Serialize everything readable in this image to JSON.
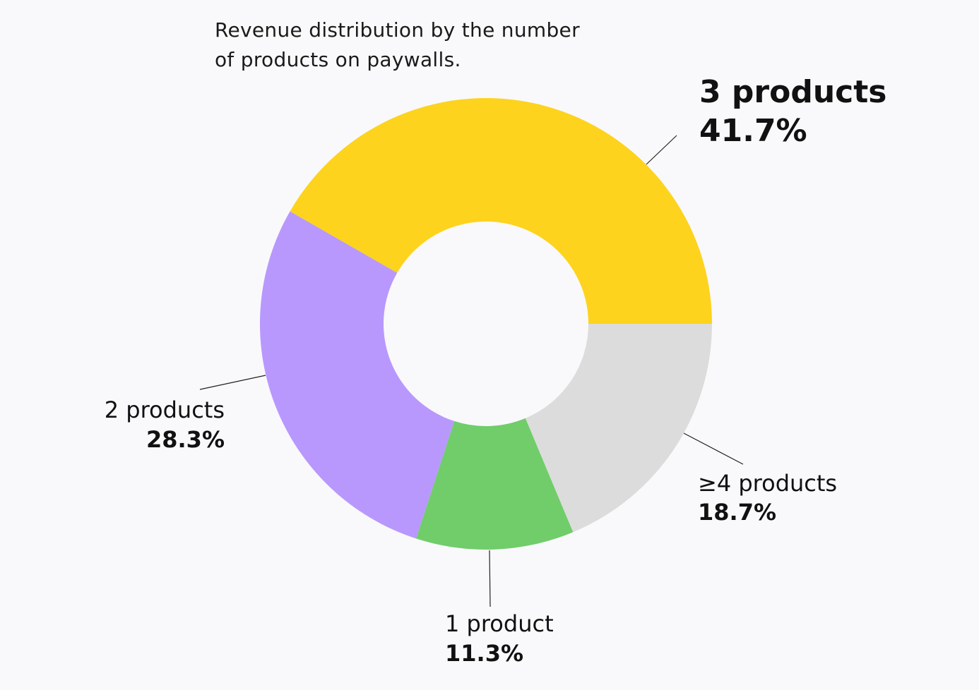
{
  "chart_data": {
    "type": "donut",
    "title": "Revenue distribution by the number of products on paywalls.",
    "categories": [
      "3 products",
      "2 products",
      "1 product",
      "≥4 products"
    ],
    "values": [
      41.7,
      28.3,
      11.3,
      18.7
    ],
    "value_labels": [
      "41.7%",
      "28.3%",
      "11.3%",
      "18.7%"
    ],
    "colors": [
      "#fdd31d",
      "#b898fd",
      "#70cd6a",
      "#dcdcdc"
    ]
  }
}
